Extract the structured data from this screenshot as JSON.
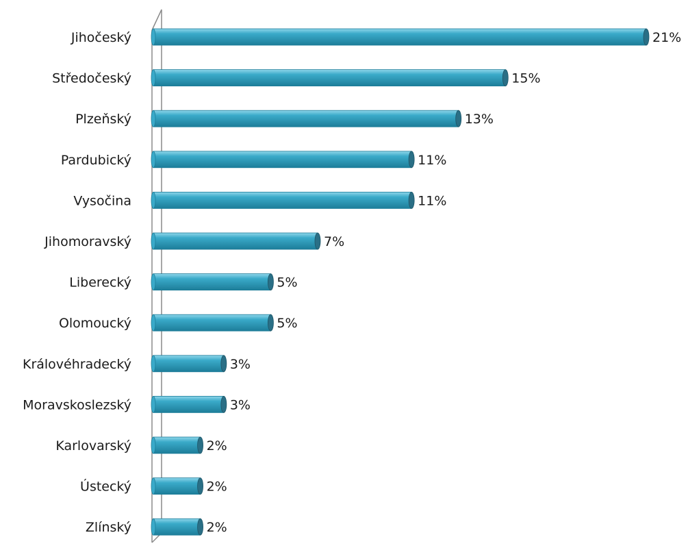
{
  "chart_data": {
    "type": "bar",
    "orientation": "horizontal",
    "style": "3d-cylinder",
    "categories": [
      "Jihočeský",
      "Středočeský",
      "Plzeňský",
      "Pardubický",
      "Vysočina",
      "Jihomoravský",
      "Liberecký",
      "Olomoucký",
      "Královéhradecký",
      "Moravskoslezský",
      "Karlovarský",
      "Ústecký ",
      "Zlínský"
    ],
    "values": [
      21,
      15,
      13,
      11,
      11,
      7,
      5,
      5,
      3,
      3,
      2,
      2,
      2
    ],
    "value_labels": [
      "21%",
      "15%",
      "13%",
      "11%",
      "11%",
      "7%",
      "5%",
      "5%",
      "3%",
      "3%",
      "2%",
      "2%",
      "2%"
    ],
    "unit": "%",
    "xlim": [
      0,
      21
    ],
    "grid": false,
    "legend": "none",
    "colors": {
      "bar": "#3aaac9",
      "bar_light": "#8fd6ea",
      "bar_dark": "#1d7d99",
      "bar_cap": "#2a6f86",
      "axis_wall": "#8a8a8a"
    }
  }
}
